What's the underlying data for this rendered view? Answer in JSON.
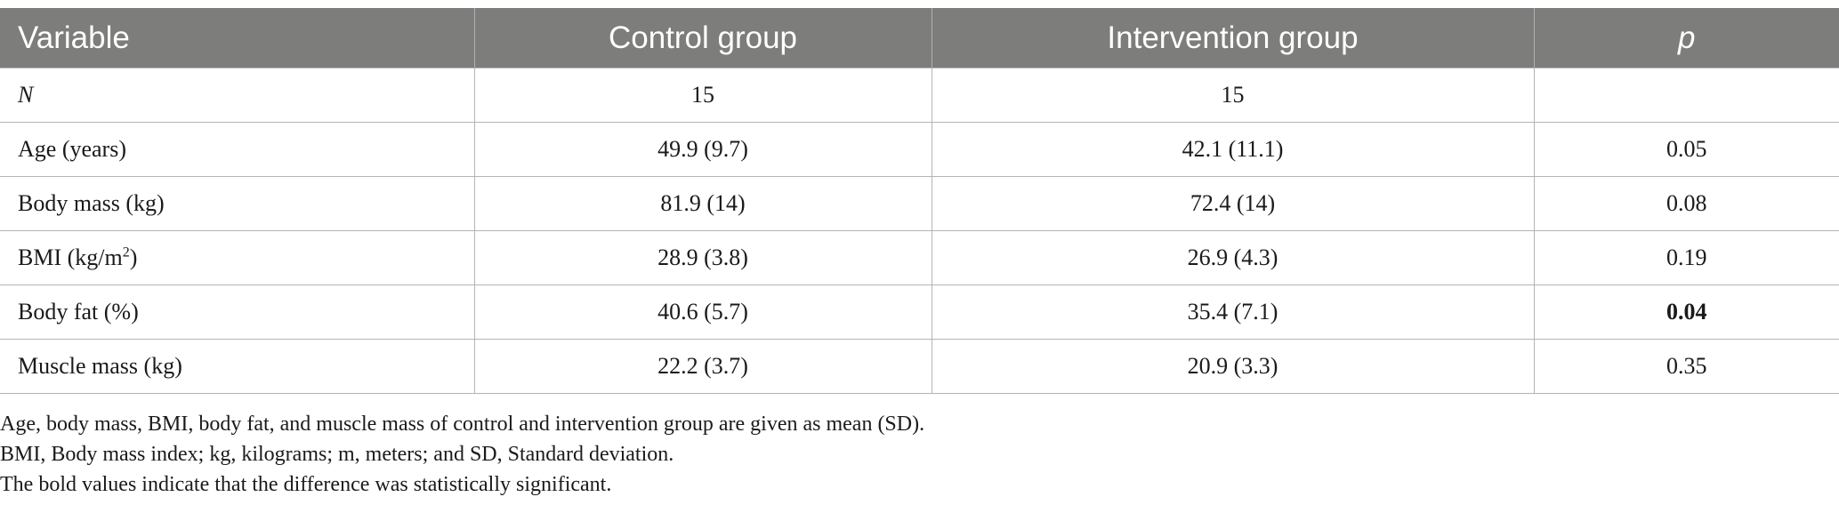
{
  "table": {
    "headers": [
      "Variable",
      "Control group",
      "Intervention group",
      "p"
    ],
    "rows": [
      {
        "variable": "N",
        "control": "15",
        "intervention": "15",
        "p": ""
      },
      {
        "variable": "Age (years)",
        "control": "49.9 (9.7)",
        "intervention": "42.1 (11.1)",
        "p": "0.05"
      },
      {
        "variable": "Body mass (kg)",
        "control": "81.9 (14)",
        "intervention": "72.4 (14)",
        "p": "0.08"
      },
      {
        "variable_prefix": "BMI (kg/m",
        "variable_sup": "2",
        "variable_suffix": ")",
        "control": "28.9 (3.8)",
        "intervention": "26.9 (4.3)",
        "p": "0.19"
      },
      {
        "variable": "Body fat (%)",
        "control": "40.6 (5.7)",
        "intervention": "35.4 (7.1)",
        "p": "0.04",
        "p_bold": true
      },
      {
        "variable": "Muscle mass (kg)",
        "control": "22.2 (3.7)",
        "intervention": "20.9 (3.3)",
        "p": "0.35"
      }
    ]
  },
  "footnotes": [
    "Age, body mass, BMI, body fat, and muscle mass of control and intervention group are given as mean (SD).",
    "BMI, Body mass index; kg, kilograms; m, meters; and SD, Standard deviation.",
    "The bold values indicate that the difference was statistically significant."
  ]
}
